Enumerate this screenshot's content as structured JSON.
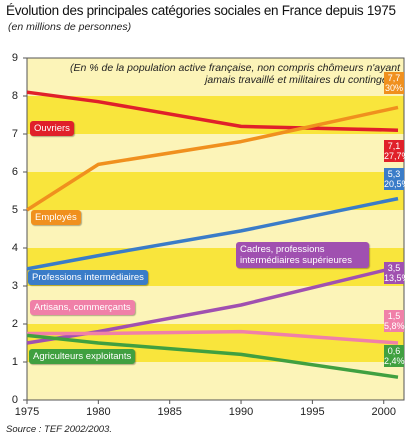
{
  "chart_data": {
    "type": "line",
    "title": "Évolution des principales catégories sociales en France depuis 1975",
    "subtitle": "(en millions de personnes)",
    "annotation": "(En % de la population active française, non compris chômeurs n'ayant jamais travaillé et militaires du contingent)",
    "source": "Source : TEF 2002/2003.",
    "x": [
      1975,
      1980,
      1990,
      2001
    ],
    "xlim": [
      1975,
      2001
    ],
    "xticks": [
      1975,
      1980,
      1985,
      1990,
      1995,
      2000
    ],
    "ylim": [
      0,
      9
    ],
    "yticks": [
      0,
      1,
      2,
      3,
      4,
      5,
      6,
      7,
      8,
      9
    ],
    "series": [
      {
        "name": "Ouvriers",
        "color": "#e0202a",
        "values": [
          8.1,
          7.85,
          7.2,
          7.1
        ],
        "value_labels": [
          null,
          null,
          null,
          "7,1"
        ],
        "share_label": "27,7%"
      },
      {
        "name": "Employés",
        "color": "#f0901e",
        "values": [
          5.0,
          6.2,
          6.8,
          7.7
        ],
        "value_labels": [
          null,
          null,
          null,
          "7,7"
        ],
        "share_label": "30%"
      },
      {
        "name": "Professions intermédiaires",
        "color": "#3a7cc8",
        "values": [
          3.45,
          3.8,
          4.45,
          5.3
        ],
        "value_labels": [
          null,
          null,
          null,
          "5,3"
        ],
        "share_label": "20,5%"
      },
      {
        "name": "Cadres, professions intermédiaires supérieures",
        "color": "#a050b0",
        "values": [
          1.5,
          1.8,
          2.5,
          3.5
        ],
        "value_labels": [
          null,
          null,
          null,
          "3,5"
        ],
        "share_label": "13,5%"
      },
      {
        "name": "Artisans, commerçants",
        "color": "#f080a8",
        "values": [
          1.75,
          1.75,
          1.8,
          1.5
        ],
        "value_labels": [
          null,
          null,
          null,
          "1,5"
        ],
        "share_label": "5,8%"
      },
      {
        "name": "Agriculteurs exploitants",
        "color": "#40a040",
        "values": [
          1.7,
          1.5,
          1.2,
          0.6
        ],
        "value_labels": [
          null,
          null,
          null,
          "0,6"
        ],
        "share_label": "2,4%"
      }
    ]
  }
}
